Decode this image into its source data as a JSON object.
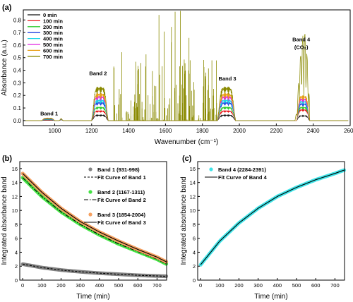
{
  "panels": {
    "a": {
      "label": "(a)"
    },
    "b": {
      "label": "(b)"
    },
    "c": {
      "label": "(c)"
    }
  },
  "colors": {
    "series_a": [
      "#111111",
      "#e8141a",
      "#2ecc2e",
      "#1f3fe0",
      "#1dd6e8",
      "#e020e0",
      "#e8a01a",
      "#8a8a00"
    ],
    "band1_marker": "#808080",
    "band2_marker": "#44e244",
    "band3_marker": "#f5a060",
    "band4_marker": "#3fe3e8"
  },
  "chart_data": [
    {
      "type": "line",
      "panel": "(a)",
      "xlabel": "Wavenumber (cm⁻¹)",
      "ylabel": "Absorbance (a.u.)",
      "xlim": [
        830,
        2600
      ],
      "ylim": [
        -0.04,
        0.88
      ],
      "xticks": [
        1000,
        1200,
        1400,
        1600,
        1800,
        2000,
        2200,
        2400,
        2600
      ],
      "yticks": [
        0.0,
        0.1,
        0.2,
        0.3,
        0.4,
        0.5,
        0.6,
        0.7,
        0.8
      ],
      "legend_position": "top-left",
      "series": [
        {
          "name": "0 min",
          "band2_peak": 0.045,
          "band3_peak": 0.045,
          "band4_peak": 0.04
        },
        {
          "name": "100 min",
          "band2_peak": 0.08,
          "band3_peak": 0.08,
          "band4_peak": 0.09
        },
        {
          "name": "200 min",
          "band2_peak": 0.11,
          "band3_peak": 0.11,
          "band4_peak": 0.11
        },
        {
          "name": "300 min",
          "band2_peak": 0.15,
          "band3_peak": 0.15,
          "band4_peak": 0.14
        },
        {
          "name": "400 min",
          "band2_peak": 0.17,
          "band3_peak": 0.17,
          "band4_peak": 0.16
        },
        {
          "name": "500 min",
          "band2_peak": 0.2,
          "band3_peak": 0.2,
          "band4_peak": 0.18
        },
        {
          "name": "600 min",
          "band2_peak": 0.22,
          "band3_peak": 0.22,
          "band4_peak": 0.2
        },
        {
          "name": "700 min",
          "band2_peak": 0.27,
          "band3_peak": 0.27,
          "band4_peak": 0.74
        }
      ],
      "annotations": [
        {
          "text": "Band 1",
          "x": 970,
          "y": 0.04
        },
        {
          "text": "Band 2",
          "x": 1235,
          "y": 0.36
        },
        {
          "text": "Band 3",
          "x": 1935,
          "y": 0.32
        },
        {
          "text": "Band 4",
          "x": 2335,
          "y": 0.63
        },
        {
          "text": "(CO₂)",
          "x": 2335,
          "y": 0.57
        }
      ]
    },
    {
      "type": "scatter",
      "panel": "(b)",
      "xlabel": "Time (min)",
      "ylabel": "Integrated absorbance band",
      "xlim": [
        -15,
        750
      ],
      "ylim": [
        0,
        17
      ],
      "xticks": [
        0,
        100,
        200,
        300,
        400,
        500,
        600,
        700
      ],
      "yticks": [
        0,
        2,
        4,
        6,
        8,
        10,
        12,
        14,
        16
      ],
      "legend_position": "top-right",
      "series": [
        {
          "name": "Band 1 (931-998)",
          "x": [
            0,
            100,
            200,
            300,
            400,
            500,
            600,
            700,
            750
          ],
          "y": [
            2.3,
            1.8,
            1.45,
            1.2,
            1.0,
            0.85,
            0.7,
            0.6,
            0.55
          ]
        },
        {
          "name": "Fit Curve of Band 1",
          "x": [
            0,
            100,
            200,
            300,
            400,
            500,
            600,
            700,
            750
          ],
          "y": [
            2.3,
            1.8,
            1.45,
            1.2,
            1.0,
            0.85,
            0.7,
            0.6,
            0.55
          ]
        },
        {
          "name": "Band 2 (1167-1311)",
          "x": [
            0,
            100,
            200,
            300,
            400,
            500,
            600,
            700,
            750
          ],
          "y": [
            14.7,
            12.0,
            9.8,
            8.0,
            6.5,
            5.2,
            4.1,
            3.0,
            2.3
          ]
        },
        {
          "name": "Fit Curve of Band 2",
          "x": [
            0,
            100,
            200,
            300,
            400,
            500,
            600,
            700,
            750
          ],
          "y": [
            14.7,
            12.0,
            9.8,
            8.0,
            6.5,
            5.2,
            4.1,
            3.0,
            2.3
          ]
        },
        {
          "name": "Band 3 (1854-2004)",
          "x": [
            0,
            100,
            200,
            300,
            400,
            500,
            600,
            700,
            750
          ],
          "y": [
            15.3,
            12.6,
            10.3,
            8.4,
            6.9,
            5.6,
            4.4,
            3.3,
            2.6
          ]
        },
        {
          "name": "Fit Curve of Band 3",
          "x": [
            0,
            100,
            200,
            300,
            400,
            500,
            600,
            700,
            750
          ],
          "y": [
            15.3,
            12.6,
            10.3,
            8.4,
            6.9,
            5.6,
            4.4,
            3.3,
            2.6
          ]
        }
      ]
    },
    {
      "type": "scatter",
      "panel": "(c)",
      "xlabel": "Time (min)",
      "ylabel": "Integrated absorbance band",
      "xlim": [
        -15,
        750
      ],
      "ylim": [
        0,
        17
      ],
      "xticks": [
        0,
        100,
        200,
        300,
        400,
        500,
        600,
        700
      ],
      "yticks": [
        0,
        2,
        4,
        6,
        8,
        10,
        12,
        14,
        16
      ],
      "legend_position": "top-left",
      "series": [
        {
          "name": "Band 4 (2284-2391)",
          "x": [
            0,
            100,
            200,
            300,
            400,
            500,
            600,
            700,
            750
          ],
          "y": [
            2.2,
            5.6,
            8.2,
            10.3,
            12.0,
            13.3,
            14.4,
            15.3,
            15.8
          ]
        },
        {
          "name": "Fit Curve of Band 4",
          "x": [
            0,
            100,
            200,
            300,
            400,
            500,
            600,
            700,
            750
          ],
          "y": [
            2.2,
            5.6,
            8.2,
            10.3,
            12.0,
            13.3,
            14.4,
            15.3,
            15.8
          ]
        }
      ]
    }
  ]
}
